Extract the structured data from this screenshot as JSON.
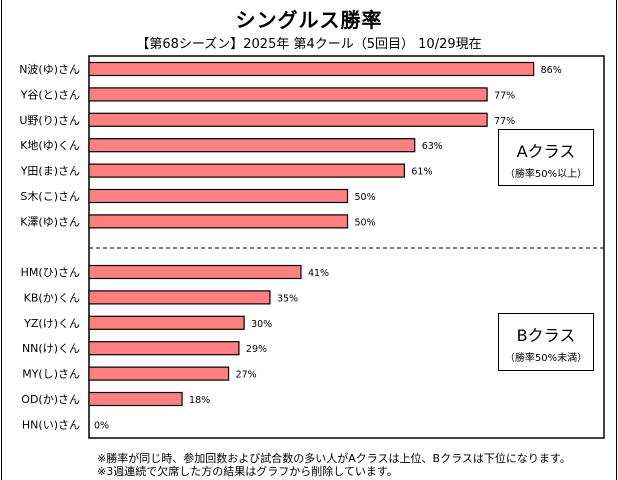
{
  "chart_data": {
    "type": "bar",
    "orientation": "horizontal",
    "title": "シングルス勝率",
    "subtitle": "【第68シーズン】2025年 第4クール（5回目） 10/29現在",
    "xlim": [
      0,
      100
    ],
    "value_suffix": "%",
    "bar_color": "#FF8080",
    "groups": [
      {
        "name": "Aクラス",
        "note": "（勝率50%以上）",
        "categories": [
          "N波(ゆ)さん",
          "Y谷(と)さん",
          "U野(り)さん",
          "K地(ゆ)くん",
          "Y田(ま)さん",
          "S木(こ)さん",
          "K澤(ゆ)さん"
        ],
        "values": [
          86,
          77,
          77,
          63,
          61,
          50,
          50
        ]
      },
      {
        "name": "Bクラス",
        "note": "（勝率50%未満）",
        "categories": [
          "HM(ひ)さん",
          "KB(か)くん",
          "YZ(け)くん",
          "NN(け)くん",
          "MY(し)さん",
          "OD(か)さん",
          "HN(い)さん"
        ],
        "values": [
          41,
          35,
          30,
          29,
          27,
          18,
          0
        ]
      }
    ],
    "separator": "dashed line between Aクラス and Bクラス",
    "grid": false,
    "legend": "none"
  },
  "notes": [
    "※勝率が同じ時、参加回数および試合数の多い人がAクラスは上位、Bクラスは下位になります。",
    "※3週連続で欠席した方の結果はグラフから削除しています。"
  ]
}
